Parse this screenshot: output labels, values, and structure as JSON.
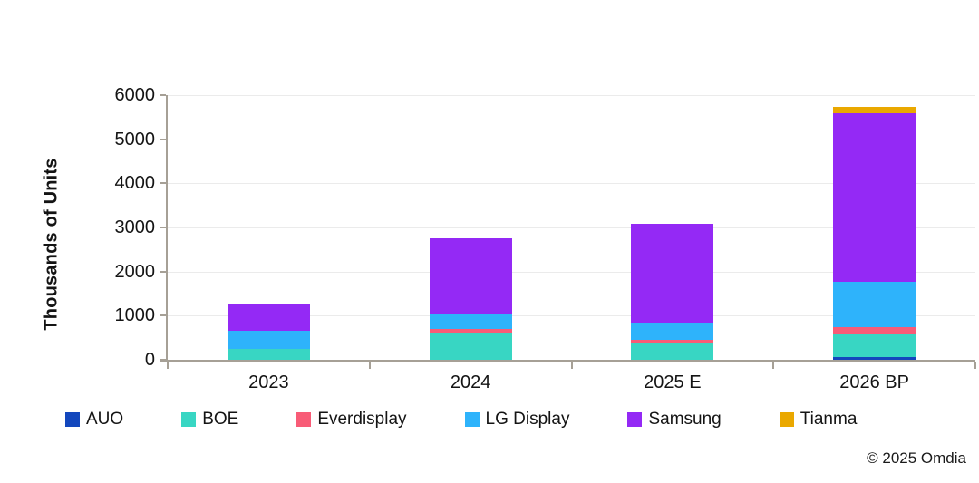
{
  "chart": {
    "copyright": "© 2025 Omdia"
  },
  "chart_data": {
    "type": "bar",
    "stacked": true,
    "title": "",
    "xlabel": "",
    "ylabel": "Thousands of Units",
    "categories": [
      "2023",
      "2024",
      "2025 E",
      "2026 BP"
    ],
    "series": [
      {
        "name": "AUO",
        "color": "#1347bd",
        "values": [
          0,
          0,
          0,
          60
        ]
      },
      {
        "name": "BOE",
        "color": "#38d6c3",
        "values": [
          240,
          600,
          370,
          520
        ]
      },
      {
        "name": "Everdisplay",
        "color": "#f85c77",
        "values": [
          0,
          100,
          80,
          160
        ]
      },
      {
        "name": "LG Display",
        "color": "#2eb3fb",
        "values": [
          410,
          340,
          390,
          1030
        ]
      },
      {
        "name": "Samsung",
        "color": "#9429f5",
        "values": [
          620,
          1710,
          2240,
          3810
        ]
      },
      {
        "name": "Tianma",
        "color": "#eaa800",
        "values": [
          0,
          0,
          0,
          160
        ]
      }
    ],
    "totals": [
      1270,
      2750,
      3080,
      5740
    ],
    "ylim": [
      0,
      6000
    ],
    "ytick_step": 1000,
    "grid": true,
    "legend_position": "bottom",
    "axis_color": "#a6a096",
    "gridline_color": "#ebebeb"
  }
}
